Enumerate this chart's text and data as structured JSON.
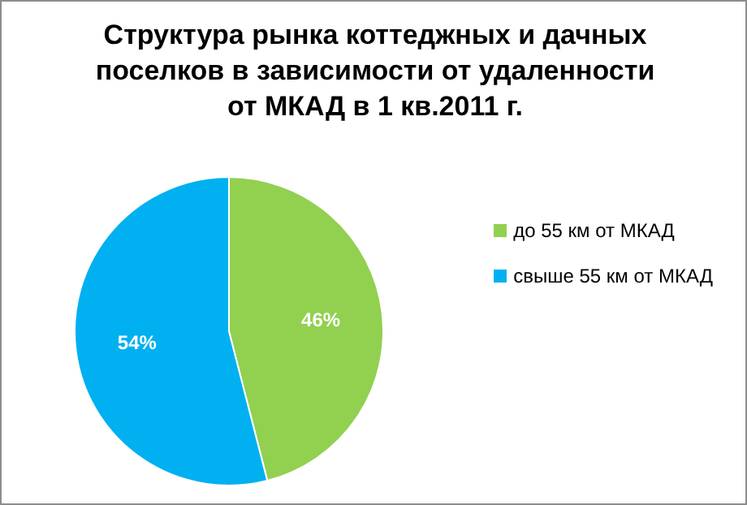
{
  "chart_data": {
    "type": "pie",
    "title": "Структура рынка коттеджных и дачных поселков в зависимости от удаленности от МКАД в 1 кв.2011 г.",
    "categories": [
      "до 55 км  от МКАД",
      "свыше 55 км от МКАД"
    ],
    "values": [
      46,
      54
    ],
    "colors": [
      "#92d050",
      "#00b0f0"
    ],
    "value_labels": [
      "46%",
      "54%"
    ],
    "legend": "right"
  }
}
